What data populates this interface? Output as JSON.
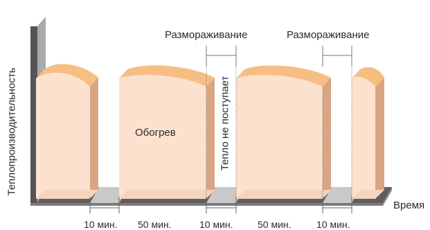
{
  "axes": {
    "y_label": "Теплопроизводительность",
    "x_label": "Время"
  },
  "phases": [
    {
      "label": "Обогрев"
    },
    {
      "label": "Тепло не поступает"
    },
    {
      "label": "Размораживание"
    },
    {
      "label": "Размораживание"
    }
  ],
  "durations": [
    "10 мин.",
    "50 мин.",
    "10 мин.",
    "50 мин.",
    "10 мин."
  ],
  "colors": {
    "block_front": "#fde1cf",
    "block_top": "#f7be84",
    "block_side": "#d9a583",
    "axis_dark": "#555555",
    "axis_light": "#a9a9a9"
  }
}
